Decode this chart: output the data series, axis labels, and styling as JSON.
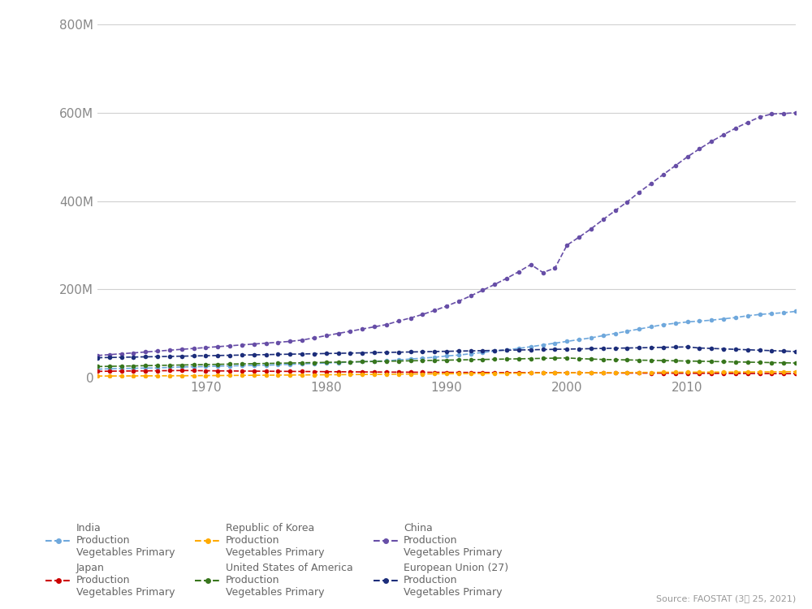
{
  "years": [
    1961,
    1962,
    1963,
    1964,
    1965,
    1966,
    1967,
    1968,
    1969,
    1970,
    1971,
    1972,
    1973,
    1974,
    1975,
    1976,
    1977,
    1978,
    1979,
    1980,
    1981,
    1982,
    1983,
    1984,
    1985,
    1986,
    1987,
    1988,
    1989,
    1990,
    1991,
    1992,
    1993,
    1994,
    1995,
    1996,
    1997,
    1998,
    1999,
    2000,
    2001,
    2002,
    2003,
    2004,
    2005,
    2006,
    2007,
    2008,
    2009,
    2010,
    2011,
    2012,
    2013,
    2014,
    2015,
    2016,
    2017,
    2018,
    2019
  ],
  "series": [
    {
      "label": "India\nProduction\nVegetables Primary",
      "color": "#6fa8dc",
      "values": [
        19000000,
        20000000,
        20500000,
        21000000,
        21500000,
        22000000,
        23000000,
        24000000,
        24500000,
        25000000,
        26000000,
        26500000,
        27000000,
        27500000,
        28000000,
        29000000,
        30000000,
        31000000,
        32000000,
        33000000,
        34000000,
        35000000,
        36000000,
        37000000,
        38000000,
        40000000,
        42000000,
        44000000,
        46000000,
        49000000,
        51000000,
        54000000,
        57000000,
        60000000,
        63000000,
        66000000,
        70000000,
        74000000,
        78000000,
        82000000,
        86000000,
        90000000,
        95000000,
        100000000,
        105000000,
        110000000,
        115000000,
        120000000,
        123000000,
        126000000,
        128000000,
        130000000,
        133000000,
        136000000,
        140000000,
        143000000,
        145000000,
        147000000,
        150000000
      ]
    },
    {
      "label": "Japan\nProduction\nVegetables Primary",
      "color": "#cc0000",
      "values": [
        14000000,
        14500000,
        14800000,
        15000000,
        15200000,
        15500000,
        15700000,
        16000000,
        15800000,
        15500000,
        15200000,
        15000000,
        14800000,
        14600000,
        14400000,
        14200000,
        14000000,
        13800000,
        13600000,
        13400000,
        13200000,
        13000000,
        12800000,
        12600000,
        12500000,
        12300000,
        12200000,
        12000000,
        11900000,
        11800000,
        11700000,
        11600000,
        11500000,
        11400000,
        11300000,
        11200000,
        11100000,
        11000000,
        10900000,
        10800000,
        10700000,
        10600000,
        10500000,
        10400000,
        10300000,
        10200000,
        10100000,
        10000000,
        9900000,
        9800000,
        9700000,
        9600000,
        9500000,
        9400000,
        9300000,
        9200000,
        9100000,
        9000000,
        8900000
      ]
    },
    {
      "label": "Republic of Korea\nProduction\nVegetables Primary",
      "color": "#ffaa00",
      "values": [
        3500000,
        3600000,
        3700000,
        3800000,
        3900000,
        4000000,
        4100000,
        4200000,
        4300000,
        4500000,
        4600000,
        4800000,
        5000000,
        5200000,
        5400000,
        5600000,
        5800000,
        6000000,
        6200000,
        6400000,
        6600000,
        6800000,
        7000000,
        7200000,
        7500000,
        7800000,
        8000000,
        8200000,
        8500000,
        8800000,
        9000000,
        9200000,
        9400000,
        9600000,
        9800000,
        10000000,
        10200000,
        10400000,
        10500000,
        10600000,
        10700000,
        10800000,
        11000000,
        11200000,
        11400000,
        11600000,
        11800000,
        12000000,
        12100000,
        12200000,
        12300000,
        12400000,
        12500000,
        12600000,
        12700000,
        12800000,
        13000000,
        13200000,
        13400000
      ]
    },
    {
      "label": "United States of America\nProduction\nVegetables Primary",
      "color": "#38761d",
      "values": [
        25000000,
        25500000,
        26000000,
        26500000,
        27000000,
        27500000,
        28000000,
        28500000,
        29000000,
        29500000,
        30000000,
        30500000,
        31000000,
        31500000,
        32000000,
        32500000,
        33000000,
        33500000,
        34000000,
        34500000,
        35000000,
        35500000,
        36000000,
        36500000,
        37000000,
        37500000,
        38000000,
        38500000,
        39000000,
        39500000,
        40000000,
        40500000,
        41000000,
        41500000,
        42000000,
        42500000,
        43000000,
        43500000,
        44000000,
        44500000,
        43000000,
        42000000,
        41000000,
        40500000,
        40000000,
        39500000,
        39000000,
        38500000,
        38000000,
        37500000,
        37000000,
        36500000,
        36000000,
        35500000,
        35000000,
        34500000,
        34000000,
        33500000,
        33000000
      ]
    },
    {
      "label": "China\nProduction\nVegetables Primary",
      "color": "#674ea7",
      "values": [
        50000000,
        52000000,
        54000000,
        56000000,
        58000000,
        60000000,
        62000000,
        64000000,
        66000000,
        68000000,
        70000000,
        72000000,
        74000000,
        76000000,
        78000000,
        80000000,
        82000000,
        85000000,
        90000000,
        95000000,
        100000000,
        105000000,
        110000000,
        115000000,
        120000000,
        128000000,
        135000000,
        143000000,
        152000000,
        162000000,
        173000000,
        185000000,
        198000000,
        211000000,
        225000000,
        240000000,
        256000000,
        238000000,
        248000000,
        300000000,
        318000000,
        337000000,
        358000000,
        378000000,
        398000000,
        420000000,
        440000000,
        460000000,
        480000000,
        500000000,
        518000000,
        535000000,
        550000000,
        565000000,
        578000000,
        590000000,
        597000000,
        598000000,
        600000000
      ]
    },
    {
      "label": "European Union (27)\nProduction\nVegetables Primary",
      "color": "#1c2d7a",
      "values": [
        45000000,
        45500000,
        46000000,
        46500000,
        47000000,
        47500000,
        48000000,
        48500000,
        49000000,
        49500000,
        50000000,
        50500000,
        51000000,
        51500000,
        52000000,
        52500000,
        53000000,
        53500000,
        54000000,
        54500000,
        55000000,
        55500000,
        56000000,
        56500000,
        57000000,
        57500000,
        58000000,
        58500000,
        59000000,
        59500000,
        60000000,
        60500000,
        61000000,
        61500000,
        62000000,
        62500000,
        63000000,
        63500000,
        64000000,
        64500000,
        65000000,
        65500000,
        66000000,
        66500000,
        67000000,
        67500000,
        68000000,
        68500000,
        69000000,
        69500000,
        67000000,
        66000000,
        65000000,
        64000000,
        63000000,
        62000000,
        61000000,
        60000000,
        59000000
      ]
    }
  ],
  "xlim": [
    1961,
    2019
  ],
  "ylim": [
    0,
    800000000
  ],
  "yticks": [
    0,
    200000000,
    400000000,
    600000000,
    800000000
  ],
  "ytick_labels": [
    "0",
    "200M",
    "400M",
    "600M",
    "800M"
  ],
  "xticks": [
    1970,
    1980,
    1990,
    2000,
    2010
  ],
  "background_color": "#ffffff",
  "plot_background": "#ffffff",
  "grid_color": "#d0d0d0",
  "source_text": "Source: FAOSTAT (3月 25, 2021)",
  "markersize": 4,
  "linewidth": 1.2,
  "figsize": [
    10,
    7.5
  ],
  "dpi": 100
}
